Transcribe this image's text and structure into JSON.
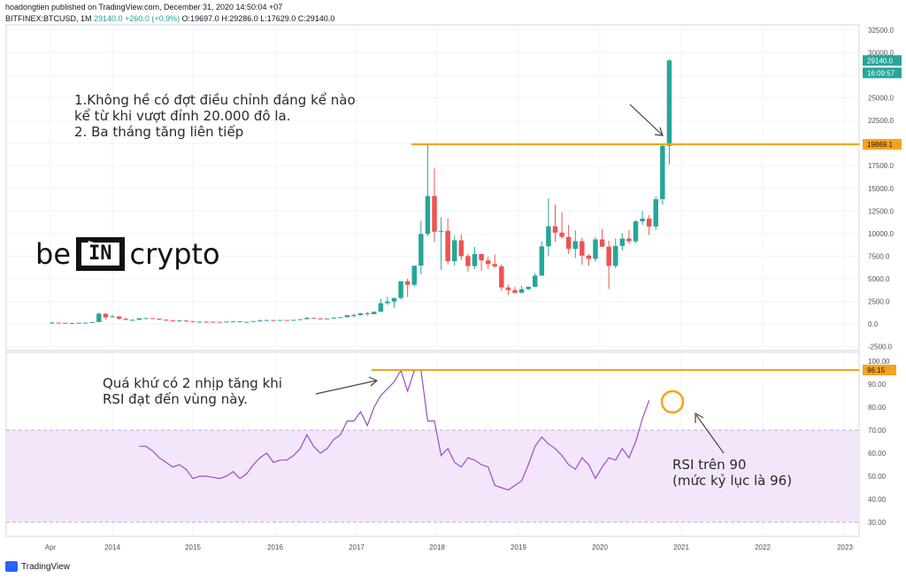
{
  "header": {
    "publisher_line": "hoadongtien published on TradingView.com, December 31, 2020 14:50:04 +07",
    "symbol": "BITFINEX:BTCUSD, 1M",
    "last": "29140.0",
    "change": "+260.0 (+0.9%)",
    "ohlc": "O:19697.0 H:29286.0 L:17629.0 C:29140.0"
  },
  "annotations": {
    "top_line1": "1.Không hề có đợt điều chỉnh đáng kể nào",
    "top_line2": "kể từ khi vượt đỉnh 20.000 đô la.",
    "top_line3": "2. Ba tháng tăng liên tiếp",
    "rsi_left_line1": "Quá khứ có 2 nhịp tăng khi",
    "rsi_left_line2": "RSI đạt đến vùng này.",
    "rsi_right_line1": "RSI trên 90",
    "rsi_right_line2": "(mức kỷ lục là 96)"
  },
  "logo": {
    "left": "be",
    "box": "IN",
    "right": "crypto"
  },
  "footer": {
    "brand": "TradingView"
  },
  "colors": {
    "up": "#26a69a",
    "down": "#ef5350",
    "orange": "#f7a21b",
    "rsi_line": "#a04bc3",
    "rsi_band": "#f3e6fb"
  },
  "chart_data": [
    {
      "type": "candlestick",
      "title": "BITFINEX:BTCUSD, 1M",
      "ylim": [
        -2500,
        32500
      ],
      "yticks": [
        -2500,
        0,
        2500,
        5000,
        7500,
        10000,
        12500,
        15000,
        17500,
        20000,
        22500,
        25000,
        27500,
        30000,
        32500
      ],
      "ytick_labels": [
        "-2500.0",
        "0.0",
        "2500.0",
        "5000.0",
        "7500.0",
        "10000.0",
        "12500.0",
        "15000.0",
        "17500.0",
        "20000.0",
        "22500.0",
        "25000.0",
        "27500.0",
        "30000.0",
        "32500.0"
      ],
      "x_labels": [
        "Apr",
        "2014",
        "2015",
        "2016",
        "2017",
        "2018",
        "2019",
        "2020",
        "2021",
        "2022",
        "2023"
      ],
      "price_labels": {
        "last": "29140.0",
        "countdown": "16:09:57",
        "level": "19869.1"
      },
      "horizontal_level": 19869.1,
      "grid": true,
      "candles": [
        {
          "date": "2013-04",
          "o": 100,
          "h": 260,
          "l": 50,
          "c": 140
        },
        {
          "date": "2013-05",
          "o": 140,
          "h": 150,
          "l": 90,
          "c": 130
        },
        {
          "date": "2013-06",
          "o": 130,
          "h": 135,
          "l": 95,
          "c": 100
        },
        {
          "date": "2013-07",
          "o": 100,
          "h": 110,
          "l": 65,
          "c": 105
        },
        {
          "date": "2013-08",
          "o": 105,
          "h": 130,
          "l": 100,
          "c": 130
        },
        {
          "date": "2013-09",
          "o": 130,
          "h": 150,
          "l": 110,
          "c": 140
        },
        {
          "date": "2013-10",
          "o": 140,
          "h": 220,
          "l": 110,
          "c": 210
        },
        {
          "date": "2013-11",
          "o": 210,
          "h": 1240,
          "l": 200,
          "c": 1130
        },
        {
          "date": "2013-12",
          "o": 1130,
          "h": 1160,
          "l": 450,
          "c": 730
        },
        {
          "date": "2014-01",
          "o": 730,
          "h": 1050,
          "l": 720,
          "c": 830
        },
        {
          "date": "2014-02",
          "o": 830,
          "h": 850,
          "l": 500,
          "c": 570
        },
        {
          "date": "2014-03",
          "o": 570,
          "h": 700,
          "l": 420,
          "c": 450
        },
        {
          "date": "2014-04",
          "o": 450,
          "h": 540,
          "l": 340,
          "c": 450
        },
        {
          "date": "2014-05",
          "o": 450,
          "h": 630,
          "l": 430,
          "c": 630
        },
        {
          "date": "2014-06",
          "o": 630,
          "h": 680,
          "l": 550,
          "c": 640
        },
        {
          "date": "2014-07",
          "o": 640,
          "h": 660,
          "l": 560,
          "c": 590
        },
        {
          "date": "2014-08",
          "o": 590,
          "h": 600,
          "l": 440,
          "c": 480
        },
        {
          "date": "2014-09",
          "o": 480,
          "h": 490,
          "l": 360,
          "c": 390
        },
        {
          "date": "2014-10",
          "o": 390,
          "h": 420,
          "l": 290,
          "c": 340
        },
        {
          "date": "2014-11",
          "o": 340,
          "h": 460,
          "l": 320,
          "c": 380
        },
        {
          "date": "2014-12",
          "o": 380,
          "h": 390,
          "l": 300,
          "c": 320
        },
        {
          "date": "2015-01",
          "o": 320,
          "h": 320,
          "l": 160,
          "c": 220
        },
        {
          "date": "2015-02",
          "o": 220,
          "h": 270,
          "l": 210,
          "c": 255
        },
        {
          "date": "2015-03",
          "o": 255,
          "h": 300,
          "l": 235,
          "c": 245
        },
        {
          "date": "2015-04",
          "o": 245,
          "h": 260,
          "l": 210,
          "c": 235
        },
        {
          "date": "2015-05",
          "o": 235,
          "h": 250,
          "l": 225,
          "c": 230
        },
        {
          "date": "2015-06",
          "o": 230,
          "h": 265,
          "l": 220,
          "c": 260
        },
        {
          "date": "2015-07",
          "o": 260,
          "h": 320,
          "l": 255,
          "c": 285
        },
        {
          "date": "2015-08",
          "o": 285,
          "h": 290,
          "l": 200,
          "c": 230
        },
        {
          "date": "2015-09",
          "o": 230,
          "h": 245,
          "l": 225,
          "c": 235
        },
        {
          "date": "2015-10",
          "o": 235,
          "h": 330,
          "l": 235,
          "c": 315
        },
        {
          "date": "2015-11",
          "o": 315,
          "h": 500,
          "l": 310,
          "c": 375
        },
        {
          "date": "2015-12",
          "o": 375,
          "h": 470,
          "l": 345,
          "c": 430
        },
        {
          "date": "2016-01",
          "o": 430,
          "h": 460,
          "l": 350,
          "c": 370
        },
        {
          "date": "2016-02",
          "o": 370,
          "h": 445,
          "l": 365,
          "c": 435
        },
        {
          "date": "2016-03",
          "o": 435,
          "h": 440,
          "l": 400,
          "c": 415
        },
        {
          "date": "2016-04",
          "o": 415,
          "h": 465,
          "l": 410,
          "c": 450
        },
        {
          "date": "2016-05",
          "o": 450,
          "h": 550,
          "l": 440,
          "c": 530
        },
        {
          "date": "2016-06",
          "o": 530,
          "h": 780,
          "l": 520,
          "c": 670
        },
        {
          "date": "2016-07",
          "o": 670,
          "h": 700,
          "l": 610,
          "c": 625
        },
        {
          "date": "2016-08",
          "o": 625,
          "h": 630,
          "l": 470,
          "c": 575
        },
        {
          "date": "2016-09",
          "o": 575,
          "h": 610,
          "l": 570,
          "c": 610
        },
        {
          "date": "2016-10",
          "o": 610,
          "h": 715,
          "l": 605,
          "c": 700
        },
        {
          "date": "2016-11",
          "o": 700,
          "h": 755,
          "l": 690,
          "c": 745
        },
        {
          "date": "2016-12",
          "o": 745,
          "h": 980,
          "l": 740,
          "c": 965
        },
        {
          "date": "2017-01",
          "o": 965,
          "h": 1150,
          "l": 750,
          "c": 970
        },
        {
          "date": "2017-02",
          "o": 970,
          "h": 1200,
          "l": 920,
          "c": 1190
        },
        {
          "date": "2017-03",
          "o": 1190,
          "h": 1350,
          "l": 890,
          "c": 1080
        },
        {
          "date": "2017-04",
          "o": 1080,
          "h": 1350,
          "l": 1070,
          "c": 1350
        },
        {
          "date": "2017-05",
          "o": 1350,
          "h": 2790,
          "l": 1340,
          "c": 2300
        },
        {
          "date": "2017-06",
          "o": 2300,
          "h": 3000,
          "l": 2100,
          "c": 2480
        },
        {
          "date": "2017-07",
          "o": 2480,
          "h": 2900,
          "l": 1800,
          "c": 2870
        },
        {
          "date": "2017-08",
          "o": 2870,
          "h": 4700,
          "l": 2700,
          "c": 4730
        },
        {
          "date": "2017-09",
          "o": 4730,
          "h": 5000,
          "l": 2970,
          "c": 4340
        },
        {
          "date": "2017-10",
          "o": 4340,
          "h": 6400,
          "l": 4110,
          "c": 6450
        },
        {
          "date": "2017-11",
          "o": 6450,
          "h": 11400,
          "l": 5500,
          "c": 9950
        },
        {
          "date": "2017-12",
          "o": 9950,
          "h": 19870,
          "l": 9700,
          "c": 14150
        },
        {
          "date": "2018-01",
          "o": 14150,
          "h": 17200,
          "l": 9100,
          "c": 10200
        },
        {
          "date": "2018-02",
          "o": 10200,
          "h": 11800,
          "l": 6000,
          "c": 10300
        },
        {
          "date": "2018-03",
          "o": 10300,
          "h": 11700,
          "l": 6600,
          "c": 6950
        },
        {
          "date": "2018-04",
          "o": 6950,
          "h": 9800,
          "l": 6450,
          "c": 9250
        },
        {
          "date": "2018-05",
          "o": 9250,
          "h": 9900,
          "l": 7080,
          "c": 7500
        },
        {
          "date": "2018-06",
          "o": 7500,
          "h": 7780,
          "l": 5750,
          "c": 6400
        },
        {
          "date": "2018-07",
          "o": 6400,
          "h": 8500,
          "l": 6080,
          "c": 7730
        },
        {
          "date": "2018-08",
          "o": 7730,
          "h": 7750,
          "l": 5880,
          "c": 7030
        },
        {
          "date": "2018-09",
          "o": 7030,
          "h": 7430,
          "l": 6100,
          "c": 6630
        },
        {
          "date": "2018-10",
          "o": 6630,
          "h": 7680,
          "l": 6180,
          "c": 6370
        },
        {
          "date": "2018-11",
          "o": 6370,
          "h": 6590,
          "l": 3650,
          "c": 4040
        },
        {
          "date": "2018-12",
          "o": 4040,
          "h": 4350,
          "l": 3200,
          "c": 3740
        },
        {
          "date": "2019-01",
          "o": 3740,
          "h": 4100,
          "l": 3360,
          "c": 3450
        },
        {
          "date": "2019-02",
          "o": 3450,
          "h": 4200,
          "l": 3400,
          "c": 3850
        },
        {
          "date": "2019-03",
          "o": 3850,
          "h": 4140,
          "l": 3730,
          "c": 4110
        },
        {
          "date": "2019-04",
          "o": 4110,
          "h": 5640,
          "l": 4060,
          "c": 5350
        },
        {
          "date": "2019-05",
          "o": 5350,
          "h": 9150,
          "l": 5330,
          "c": 8580
        },
        {
          "date": "2019-06",
          "o": 8580,
          "h": 13880,
          "l": 7500,
          "c": 10800
        },
        {
          "date": "2019-07",
          "o": 10800,
          "h": 13200,
          "l": 9100,
          "c": 10100
        },
        {
          "date": "2019-08",
          "o": 10100,
          "h": 12350,
          "l": 9400,
          "c": 9630
        },
        {
          "date": "2019-09",
          "o": 9630,
          "h": 10950,
          "l": 7730,
          "c": 8300
        },
        {
          "date": "2019-10",
          "o": 8300,
          "h": 10350,
          "l": 7300,
          "c": 9150
        },
        {
          "date": "2019-11",
          "o": 9150,
          "h": 9520,
          "l": 6550,
          "c": 7550
        },
        {
          "date": "2019-12",
          "o": 7550,
          "h": 7750,
          "l": 6450,
          "c": 7200
        },
        {
          "date": "2020-01",
          "o": 7200,
          "h": 9600,
          "l": 6900,
          "c": 9350
        },
        {
          "date": "2020-02",
          "o": 9350,
          "h": 10500,
          "l": 8500,
          "c": 8550
        },
        {
          "date": "2020-03",
          "o": 8550,
          "h": 9200,
          "l": 3850,
          "c": 6420
        },
        {
          "date": "2020-04",
          "o": 6420,
          "h": 9450,
          "l": 6150,
          "c": 8630
        },
        {
          "date": "2020-05",
          "o": 8630,
          "h": 10050,
          "l": 8130,
          "c": 9450
        },
        {
          "date": "2020-06",
          "o": 9450,
          "h": 10400,
          "l": 8900,
          "c": 9140
        },
        {
          "date": "2020-07",
          "o": 9140,
          "h": 11450,
          "l": 8950,
          "c": 11350
        },
        {
          "date": "2020-08",
          "o": 11350,
          "h": 12480,
          "l": 10950,
          "c": 11650
        },
        {
          "date": "2020-09",
          "o": 11650,
          "h": 12050,
          "l": 9850,
          "c": 10780
        },
        {
          "date": "2020-10",
          "o": 10780,
          "h": 14100,
          "l": 10400,
          "c": 13800
        },
        {
          "date": "2020-11",
          "o": 13800,
          "h": 19870,
          "l": 13200,
          "c": 19700
        },
        {
          "date": "2020-12",
          "o": 19697,
          "h": 29286,
          "l": 17629,
          "c": 29140
        }
      ]
    },
    {
      "type": "line",
      "title": "RSI",
      "ylim": [
        25,
        100
      ],
      "yticks": [
        30,
        40,
        50,
        60,
        70,
        80,
        90,
        100
      ],
      "ytick_labels": [
        "30.00",
        "40.00",
        "50.00",
        "60.00",
        "70.00",
        "80.00",
        "90.00",
        "100.00"
      ],
      "band": [
        30,
        70
      ],
      "horizontal_level": 96.15,
      "value_label": "96.15",
      "x_start": "2014-05",
      "values": [
        63,
        63,
        61,
        58,
        56,
        54,
        55,
        53,
        49,
        50,
        50,
        49.5,
        49,
        50,
        52,
        49,
        51,
        55,
        58,
        60,
        56,
        57,
        57,
        59,
        62,
        68,
        63,
        60,
        62,
        66,
        68,
        74,
        74,
        78,
        72,
        80,
        85,
        88,
        91,
        96,
        87,
        96,
        96.15,
        74,
        74,
        59,
        62,
        56,
        54,
        58,
        57,
        55,
        54,
        46,
        45,
        44,
        46,
        48,
        55,
        63,
        67,
        64,
        62,
        59,
        55,
        53,
        58,
        55,
        49,
        54,
        58,
        57,
        62,
        58,
        65,
        75,
        83
      ]
    }
  ]
}
